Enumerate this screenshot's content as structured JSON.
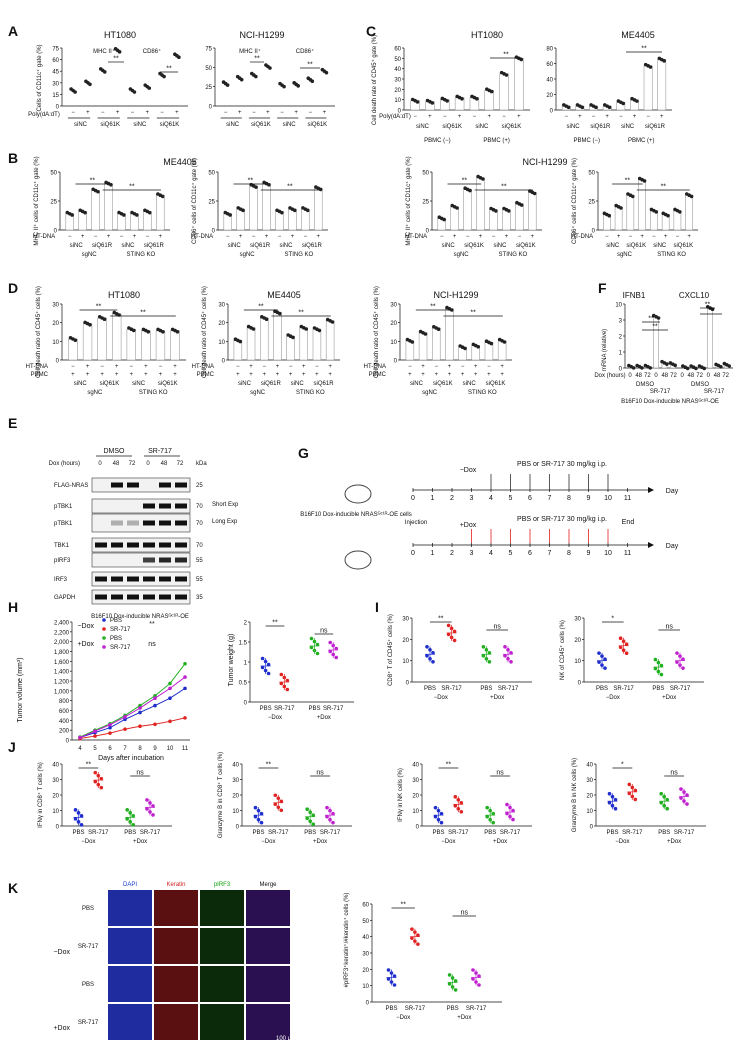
{
  "panels": {
    "A": {
      "letter": "A",
      "subtitles": [
        "HT1080",
        "NCI-H1299"
      ],
      "ylabel": "Cells of CD11c⁺ gate (%)",
      "yticks": [
        "0",
        "15",
        "30",
        "45",
        "60",
        "75"
      ],
      "yticks2": [
        "0",
        "25",
        "50",
        "75"
      ],
      "groups": [
        "MHC II⁺",
        "CD86⁺"
      ],
      "plus": "+",
      "minus": "−",
      "xrow1": "Poly(dA:dT)",
      "xrow2": [
        "siNC",
        "siQ61K"
      ],
      "sig": "**"
    },
    "B": {
      "letter": "B",
      "cell1": "ME4405",
      "cell2": "NCI-H1299",
      "ylabels": [
        "MHC II⁺ cells of CD11c⁺ gate (%)",
        "CD86⁺ cells of CD11c⁺ gate (%)",
        "MHC II⁺ cells of CD11c⁺ gate (%)",
        "CD86⁺ cells of CD11c⁺ gate (%)"
      ],
      "treat": "HT-DNA",
      "si1": [
        "siNC",
        "siQ61R"
      ],
      "si2": [
        "siNC",
        "siQ61K"
      ],
      "ko": [
        "sgNC",
        "STING KO"
      ],
      "sig": "**"
    },
    "C": {
      "letter": "C",
      "subtitles": [
        "HT1080",
        "ME4405"
      ],
      "ylabel": "Cell death rate of CD45⁺ gate (%)",
      "yticks": [
        "0",
        "10",
        "20",
        "30",
        "40",
        "50",
        "60"
      ],
      "yticks2": [
        "0",
        "20",
        "40",
        "60",
        "80"
      ],
      "xrow1": "Poly(dA:dT)",
      "si": [
        "siNC",
        "siQ61K",
        "siQ61R"
      ],
      "pbmc": [
        "PBMC (−)",
        "PBMC (+)"
      ],
      "sig": "**"
    },
    "D": {
      "letter": "D",
      "subtitles": [
        "HT1080",
        "ME4405",
        "NCI-H1299"
      ],
      "ylabel": "Cell death ratio of CD45⁺ cells (%)",
      "rows": [
        "HT-DNA",
        "PBMC"
      ],
      "si": [
        "siNC",
        "siQ61K",
        "siQ61R"
      ],
      "ko": [
        "sgNC",
        "STING KO"
      ],
      "sig": "**"
    },
    "E": {
      "letter": "E",
      "header": [
        "DMSO",
        "SR-717"
      ],
      "dox_label": "Dox (hours)",
      "dox": [
        "0",
        "48",
        "72"
      ],
      "kda": "kDa",
      "bands": [
        "FLAG-NRAS",
        "pTBK1",
        "pTBK1",
        "TBK1",
        "pIRF3",
        "IRF3",
        "GAPDH"
      ],
      "markers": [
        "25",
        "70",
        "70",
        "70",
        "55",
        "55",
        "35"
      ],
      "exp": [
        "Short Exp",
        "Long Exp"
      ],
      "caption": "B16F10 Dox-inducible NRASᴳᶜ¹ᴿ-OE"
    },
    "F": {
      "letter": "F",
      "subtitles": [
        "IFNB1",
        "CXCL10"
      ],
      "ylabel": "mRNA (relative)",
      "yticks": [
        "0",
        "1",
        "2",
        "3",
        "10",
        "20",
        "30",
        "40",
        "50",
        "75",
        "100"
      ],
      "xlabel": "Dox (hours)",
      "xticks": [
        "0",
        "48",
        "72"
      ],
      "groups": [
        "DMSO",
        "SR-717"
      ],
      "caption": "B16F10 Dox-inducible NRASᴳᶜ¹ᴿ-OE",
      "sig": "**"
    },
    "G": {
      "letter": "G",
      "mouse_label": "B16F10 Dox-inducible NRASᴳᶜ¹ᴿ-OE cells",
      "row1_dox": "−Dox",
      "row2_dox": "+Dox",
      "treat": "PBS or SR-717 30 mg/kg i.p.",
      "days": [
        "0",
        "1",
        "2",
        "3",
        "4",
        "5",
        "6",
        "7",
        "8",
        "9",
        "10",
        "11"
      ],
      "day": "Day",
      "injection": "Injection",
      "end": "End"
    },
    "H": {
      "letter": "H",
      "ylabel": "Tumor volume (mm³)",
      "yticks": [
        "0",
        "200",
        "400",
        "600",
        "800",
        "1,000",
        "1,200",
        "1,400",
        "1,600",
        "1,800",
        "2,000",
        "2,200",
        "2,400"
      ],
      "xlabel": "Days after incubation",
      "xticks": [
        "4",
        "5",
        "6",
        "7",
        "8",
        "9",
        "10",
        "11"
      ],
      "legend_groups": [
        "−Dox",
        "+Dox"
      ],
      "legend": [
        "PBS",
        "SR-717",
        "PBS",
        "SR-717"
      ],
      "sig": [
        "**",
        "ns"
      ],
      "weight_ylabel": "Tumor weight (g)",
      "weight_yticks": [
        "0",
        "0.5",
        "1",
        "1.5",
        "2"
      ]
    },
    "I": {
      "letter": "I",
      "ylabels": [
        "CD8⁺ T of CD45⁺ cells (%)",
        "NK of CD45⁺ cells (%)"
      ],
      "yticks1": [
        "0",
        "10",
        "20",
        "30"
      ],
      "yticks2": [
        "0",
        "10",
        "20",
        "30"
      ],
      "sig": [
        "**",
        "ns",
        "*",
        "ns"
      ]
    },
    "J": {
      "letter": "J",
      "ylabels": [
        "IFNγ in CD8⁺ T cells (%)",
        "Granzyme B in CD8⁺ T cells (%)",
        "IFNγ in NK cells (%)",
        "Granzyme B in NK cells (%)"
      ],
      "yticks1": [
        "0",
        "10",
        "20",
        "30",
        "40",
        "50"
      ],
      "yticks2": [
        "0",
        "10",
        "20",
        "30",
        "40"
      ],
      "yticks3": [
        "0",
        "10",
        "20",
        "30",
        "40"
      ],
      "yticks4": [
        "0",
        "10",
        "20",
        "30",
        "40"
      ],
      "sig": [
        "**",
        "ns",
        "**",
        "ns",
        "**",
        "ns",
        "*",
        "ns"
      ]
    },
    "K": {
      "letter": "K",
      "channels": [
        "DAPI",
        "Keratin",
        "pIRF3",
        "Merge"
      ],
      "rows": [
        "PBS",
        "SR-717",
        "PBS",
        "SR-717"
      ],
      "groups": [
        "−Dox",
        "+Dox"
      ],
      "scale": "100 μmol/L",
      "ylabel": "#pIRF3⁺keratin⁺/#keratin⁺ cells (%)",
      "yticks": [
        "0",
        "10",
        "20",
        "30",
        "40",
        "50",
        "60"
      ],
      "sig": [
        "**",
        "ns"
      ]
    }
  },
  "common": {
    "pbs": "PBS",
    "sr": "SR-717",
    "minus_dox": "−Dox",
    "plus_dox": "+Dox",
    "ns": "ns"
  },
  "chart_data": [
    {
      "type": "scatter",
      "panel": "A-HT1080",
      "categories": [
        "MHC II siNC −",
        "MHC II siNC +",
        "MHC II siQ61K −",
        "MHC II siQ61K +",
        "CD86 siNC −",
        "CD86 siNC +",
        "CD86 siQ61K −",
        "CD86 siQ61K +"
      ],
      "values": [
        20,
        30,
        46,
        72,
        20,
        25,
        40,
        65
      ],
      "ylim": [
        0,
        75
      ]
    },
    {
      "type": "scatter",
      "panel": "A-NCI-H1299",
      "categories": [
        "MHC II siNC −",
        "MHC II siNC +",
        "MHC II siQ61K −",
        "MHC II siQ61K +",
        "CD86 siNC −",
        "CD86 siNC +",
        "CD86 siQ61K −",
        "CD86 siQ61K +"
      ],
      "values": [
        29,
        36,
        40,
        51,
        27,
        28,
        34,
        45
      ],
      "ylim": [
        0,
        75
      ]
    },
    {
      "type": "line",
      "panel": "H",
      "x": [
        4,
        5,
        6,
        7,
        8,
        9,
        10,
        11
      ],
      "series": [
        {
          "name": "PBS",
          "values": [
            50,
            150,
            250,
            420,
            560,
            700,
            850,
            1050
          ]
        },
        {
          "name": "SR-717",
          "values": [
            30,
            80,
            140,
            220,
            280,
            320,
            380,
            450
          ]
        },
        {
          "name": "PBS",
          "values": [
            60,
            200,
            330,
            500,
            700,
            900,
            1150,
            1550
          ]
        },
        {
          "name": "SR-717",
          "values": [
            50,
            180,
            310,
            470,
            650,
            850,
            1050,
            1280
          ]
        }
      ],
      "ylim": [
        0,
        2400
      ]
    },
    {
      "type": "scatter",
      "panel": "K",
      "categories": [
        "PBS −Dox",
        "SR-717 −Dox",
        "PBS +Dox",
        "SR-717 +Dox"
      ],
      "values": [
        15,
        40,
        12,
        15
      ],
      "ylim": [
        0,
        60
      ]
    }
  ],
  "colors": {
    "pbs_minus": "#1f2ecc",
    "sr_minus": "#e02424",
    "pbs_plus": "#22b022",
    "sr_plus": "#c020d0",
    "bar": "#ffffff"
  }
}
